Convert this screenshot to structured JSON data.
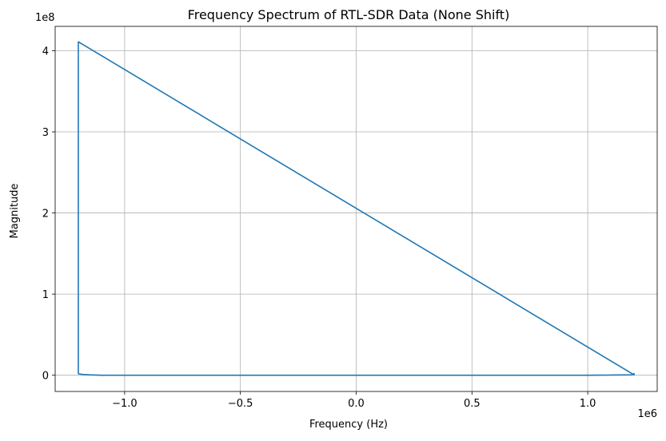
{
  "chart_data": {
    "type": "line",
    "title": "Frequency Spectrum of RTL-SDR Data (None Shift)",
    "xlabel": "Frequency (Hz)",
    "ylabel": "Magnitude",
    "x_offset_label": "1e6",
    "y_offset_label": "1e8",
    "xlim": [
      -1300000,
      1300000
    ],
    "ylim": [
      -20000000,
      430000000
    ],
    "x_ticks": [
      {
        "value": -1000000,
        "label": "−1.0"
      },
      {
        "value": -500000,
        "label": "−0.5"
      },
      {
        "value": 0,
        "label": "0.0"
      },
      {
        "value": 500000,
        "label": "0.5"
      },
      {
        "value": 1000000,
        "label": "1.0"
      }
    ],
    "y_ticks": [
      {
        "value": 0,
        "label": "0"
      },
      {
        "value": 100000000,
        "label": "1"
      },
      {
        "value": 200000000,
        "label": "2"
      },
      {
        "value": 300000000,
        "label": "3"
      },
      {
        "value": 400000000,
        "label": "4"
      }
    ],
    "grid": true,
    "series": [
      {
        "color": "#1f77b4",
        "x": [
          0,
          5000,
          100000,
          500000,
          1000000,
          1190000,
          1200000,
          1200000,
          -1200000,
          -1200000,
          -1195000,
          -1180000,
          -1150000,
          -1100000,
          -500000,
          0
        ],
        "y": [
          0,
          0,
          0,
          0,
          0,
          500000,
          2000000,
          500000,
          411000000,
          2000000,
          1500000,
          1000000,
          500000,
          0,
          0,
          0
        ]
      }
    ]
  }
}
